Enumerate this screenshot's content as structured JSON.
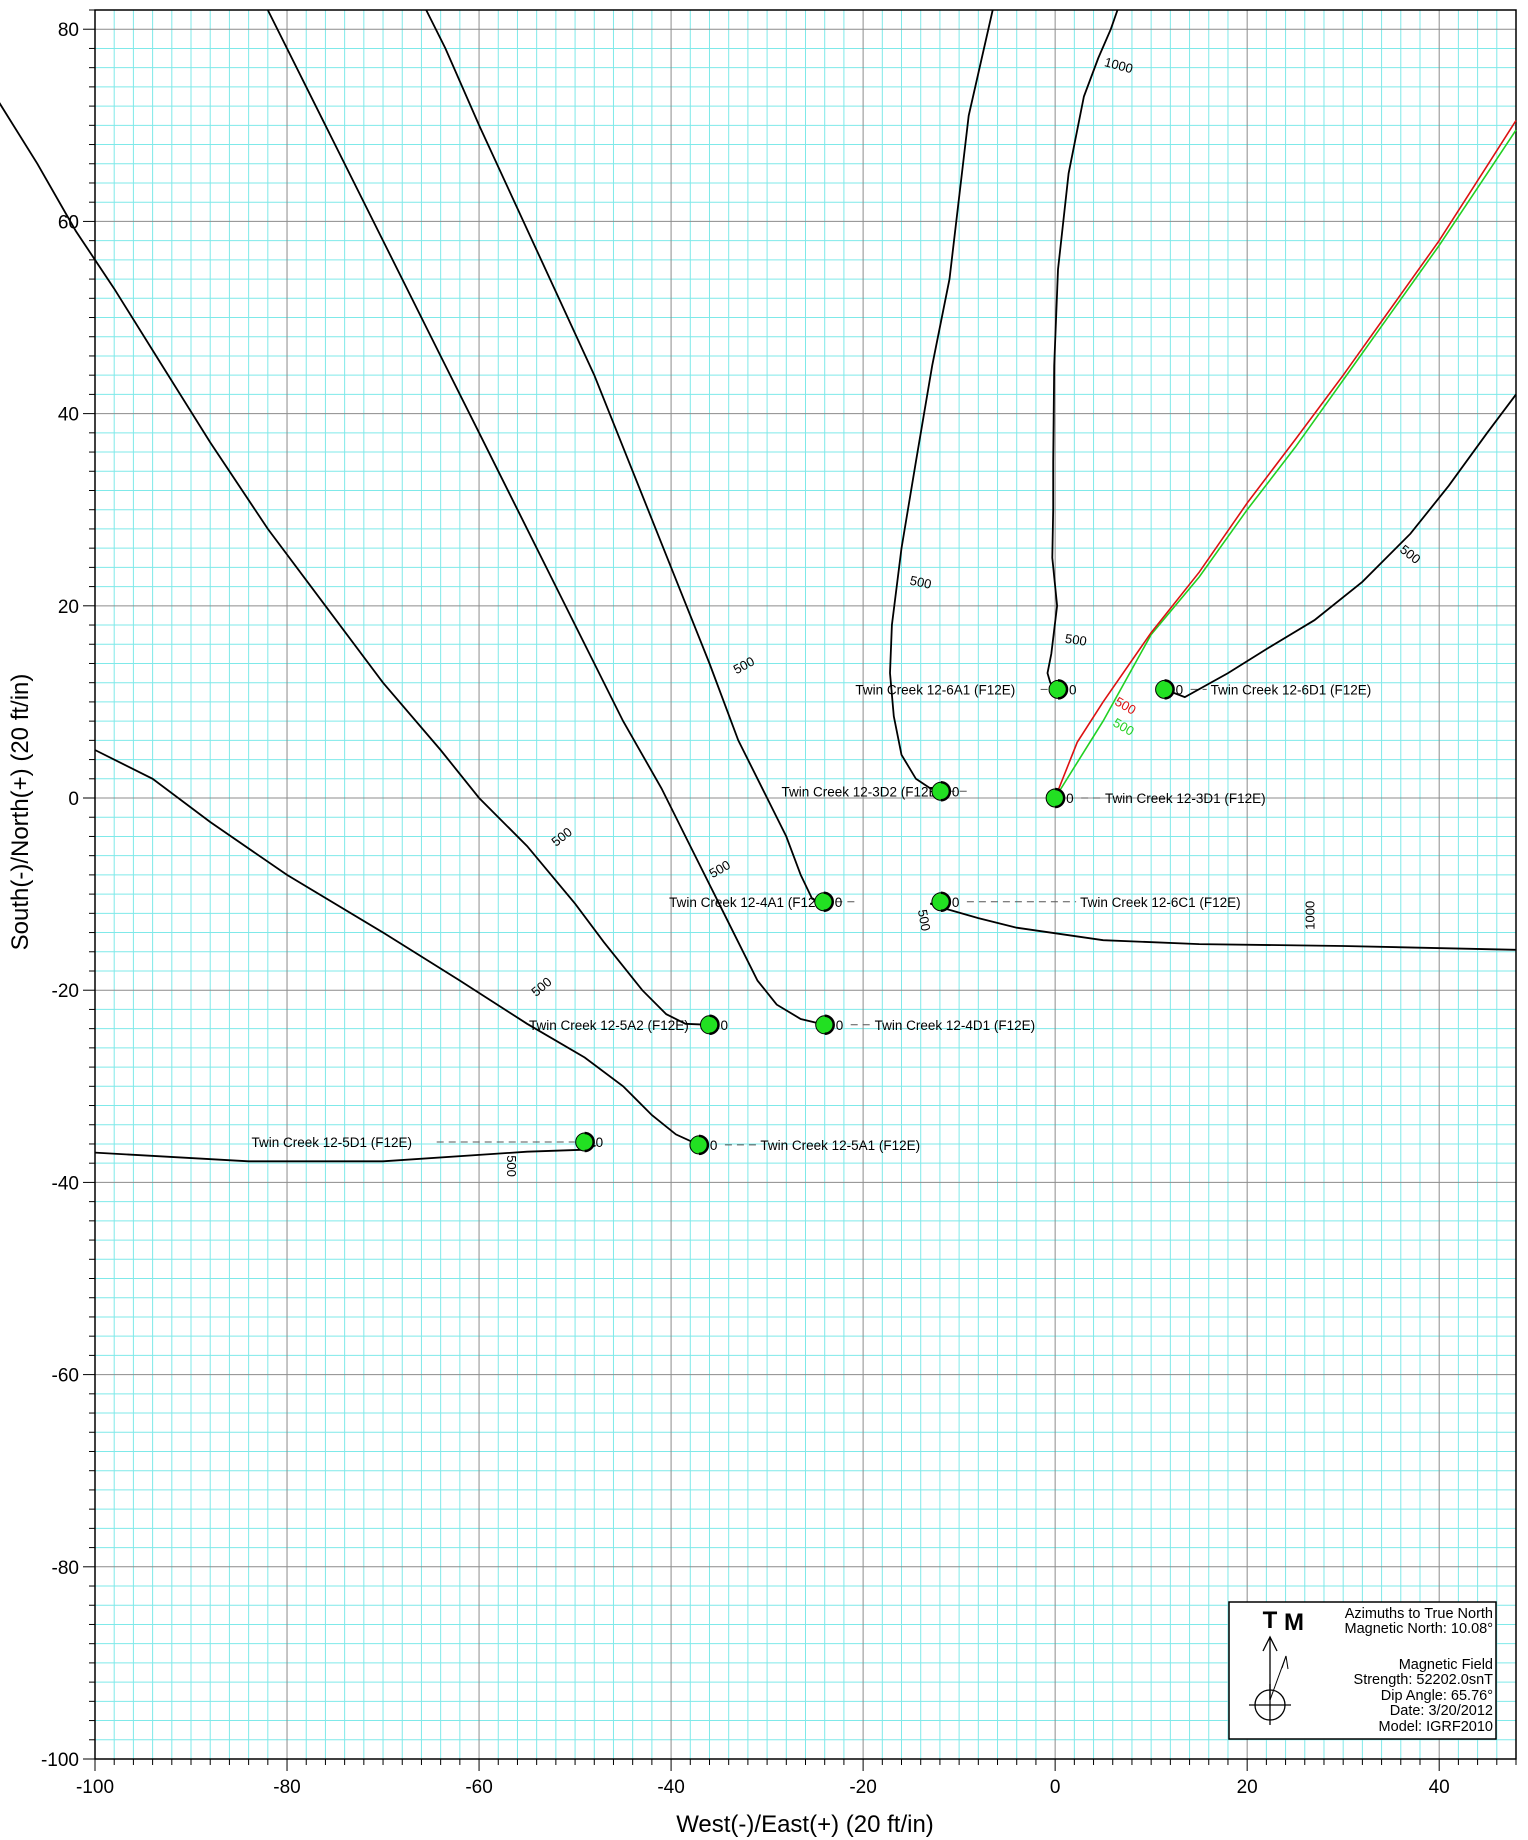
{
  "chart_data": {
    "type": "plan-view",
    "xlabel": "West(-)/East(+) (20 ft/in)",
    "ylabel": "South(-)/North(+) (20 ft/in)",
    "xlim": [
      -100,
      48
    ],
    "ylim": [
      -100,
      82
    ],
    "x_ticks": [
      -100,
      -80,
      -60,
      -40,
      -20,
      0,
      20,
      40
    ],
    "y_ticks": [
      80,
      60,
      40,
      20,
      0,
      -20,
      -40,
      -60,
      -80,
      -100
    ],
    "x_tick_labels": [
      "-100",
      "-80",
      "-60",
      "-40",
      "-20",
      "0",
      "20",
      "40"
    ],
    "y_tick_labels": [
      "80",
      "60",
      "40",
      "20",
      "0",
      "-20",
      "-40",
      "-60",
      "-80",
      "-100"
    ],
    "grid": {
      "major": 20,
      "minor": 2
    },
    "colors": {
      "minor_grid": "#7fe9e9",
      "major_grid": "#8c8c8c",
      "well_fill": "#22e022",
      "trajectory": "#000000",
      "subject_plan": "#22d022",
      "subject_actual": "#dd1111"
    },
    "wells": [
      {
        "name": "Twin Creek 12-6A1 (F12E)",
        "x": 0.3,
        "y": 11.3,
        "label_side": "left",
        "label_x": -20.8,
        "zero_label": "0"
      },
      {
        "name": "Twin Creek 12-6D1 (F12E)",
        "x": 11.4,
        "y": 11.3,
        "label_side": "right",
        "label_x": 16.2,
        "zero_label": "0"
      },
      {
        "name": "Twin Creek 12-3D2 (F12E)",
        "x": -11.9,
        "y": 0.7,
        "label_side": "left",
        "label_x": -28.5,
        "zero_label": "0"
      },
      {
        "name": "Twin Creek 12-3D1 (F12E)",
        "x": 0.0,
        "y": 0.0,
        "label_side": "right",
        "label_x": 5.2,
        "zero_label": "0"
      },
      {
        "name": "Twin Creek 12-4A1 (F12E)",
        "x": -24.1,
        "y": -10.8,
        "label_side": "left",
        "label_x": -40.2,
        "zero_label": "0"
      },
      {
        "name": "Twin Creek 12-6C1 (F12E)",
        "x": -11.9,
        "y": -10.8,
        "label_side": "right",
        "label_x": 2.6,
        "zero_label": "0"
      },
      {
        "name": "Twin Creek 12-5A2 (F12E)",
        "x": -36.0,
        "y": -23.6,
        "label_side": "left",
        "label_x": -54.8,
        "zero_label": "0"
      },
      {
        "name": "Twin Creek 12-4D1 (F12E)",
        "x": -24.0,
        "y": -23.6,
        "label_side": "right",
        "label_x": -18.8,
        "zero_label": "0"
      },
      {
        "name": "Twin Creek 12-5D1 (F12E)",
        "x": -49.0,
        "y": -35.8,
        "label_side": "left",
        "label_x": -83.7,
        "zero_label": "0"
      },
      {
        "name": "Twin Creek 12-5A1 (F12E)",
        "x": -37.1,
        "y": -36.1,
        "label_side": "right",
        "label_x": -30.7,
        "zero_label": "0"
      }
    ],
    "trajectories": [
      {
        "well": "Twin Creek 12-6A1 (F12E)",
        "color": "black",
        "points": [
          [
            0.3,
            11.3
          ],
          [
            -0.5,
            12
          ],
          [
            -0.8,
            13
          ],
          [
            -0.4,
            15
          ],
          [
            0.2,
            20
          ],
          [
            -0.3,
            25
          ],
          [
            -0.2,
            30
          ],
          [
            -0.2,
            35
          ],
          [
            -0.1,
            45
          ],
          [
            0.3,
            55
          ],
          [
            1.4,
            65
          ],
          [
            3.0,
            73
          ],
          [
            4.5,
            77
          ],
          [
            5.8,
            80
          ],
          [
            6.5,
            82
          ]
        ]
      },
      {
        "well": "Twin Creek 12-6D1 (F12E)",
        "color": "black",
        "points": [
          [
            11.4,
            11.3
          ],
          [
            13.5,
            10.5
          ],
          [
            18,
            13
          ],
          [
            22,
            15.5
          ],
          [
            27,
            18.5
          ],
          [
            32,
            22.5
          ],
          [
            37,
            27.5
          ],
          [
            41,
            32.5
          ],
          [
            45,
            38
          ],
          [
            48,
            42
          ]
        ]
      },
      {
        "well": "Twin Creek 12-3D2 (F12E)",
        "color": "black",
        "points": [
          [
            -11.9,
            0.7
          ],
          [
            -13,
            1.0
          ],
          [
            -14.5,
            2.0
          ],
          [
            -16,
            4.5
          ],
          [
            -16.8,
            8.5
          ],
          [
            -17.2,
            13
          ],
          [
            -17.0,
            18
          ],
          [
            -16.0,
            26
          ],
          [
            -14.5,
            35
          ],
          [
            -12.8,
            45
          ],
          [
            -11.0,
            54
          ],
          [
            -9.0,
            71
          ],
          [
            -6.5,
            82
          ]
        ]
      },
      {
        "well": "Twin Creek 12-4A1 (F12E)",
        "color": "black",
        "points": [
          [
            -24.1,
            -10.8
          ],
          [
            -25.3,
            -10.5
          ],
          [
            -26.5,
            -8
          ],
          [
            -28,
            -4
          ],
          [
            -30,
            0
          ],
          [
            -33,
            6
          ],
          [
            -36,
            14
          ],
          [
            -40,
            24
          ],
          [
            -44,
            34
          ],
          [
            -48,
            44
          ],
          [
            -54,
            57
          ],
          [
            -60,
            70
          ],
          [
            -63.5,
            78
          ],
          [
            -65.5,
            82
          ]
        ]
      },
      {
        "well": "Twin Creek 12-4D1 (F12E)",
        "color": "black",
        "points": [
          [
            -24.0,
            -23.6
          ],
          [
            -26.5,
            -23
          ],
          [
            -29,
            -21.5
          ],
          [
            -31,
            -19
          ],
          [
            -33,
            -15
          ],
          [
            -35,
            -11
          ],
          [
            -38,
            -5
          ],
          [
            -41,
            1
          ],
          [
            -45,
            8
          ],
          [
            -48.5,
            15
          ],
          [
            -52,
            22
          ],
          [
            -56,
            30
          ],
          [
            -60,
            38
          ],
          [
            -64,
            46
          ],
          [
            -70,
            58
          ],
          [
            -76,
            70
          ],
          [
            -82,
            82
          ]
        ]
      },
      {
        "well": "Twin Creek 12-5A2 (F12E)",
        "color": "black",
        "points": [
          [
            -36.0,
            -23.6
          ],
          [
            -38.5,
            -23.5
          ],
          [
            -40.5,
            -22.5
          ],
          [
            -43,
            -20
          ],
          [
            -47,
            -15
          ],
          [
            -50,
            -11
          ],
          [
            -55,
            -5
          ],
          [
            -60,
            0
          ],
          [
            -64,
            5
          ],
          [
            -70,
            12
          ],
          [
            -76,
            20
          ],
          [
            -82,
            28
          ],
          [
            -88,
            37
          ],
          [
            -93,
            45
          ],
          [
            -98,
            53
          ],
          [
            -102,
            59
          ],
          [
            -106,
            66
          ],
          [
            -111,
            74
          ],
          [
            -115,
            82
          ]
        ]
      },
      {
        "well": "Twin Creek 12-5A1 (F12E)",
        "color": "black",
        "points": [
          [
            -37.1,
            -36.1
          ],
          [
            -39.5,
            -35
          ],
          [
            -42,
            -33
          ],
          [
            -45,
            -30
          ],
          [
            -49,
            -27
          ],
          [
            -55,
            -23.5
          ],
          [
            -62,
            -19
          ],
          [
            -70,
            -14
          ],
          [
            -80,
            -8
          ],
          [
            -88,
            -2.5
          ],
          [
            -94,
            2
          ],
          [
            -100,
            5
          ]
        ]
      },
      {
        "well": "Twin Creek 12-6C1 (F12E)",
        "color": "black",
        "points": [
          [
            -11.9,
            -10.8
          ],
          [
            -13,
            -11
          ],
          [
            -11.5,
            -11.5
          ],
          [
            -8,
            -12.5
          ],
          [
            -4,
            -13.5
          ],
          [
            5,
            -14.8
          ],
          [
            15,
            -15.2
          ],
          [
            30,
            -15.4
          ],
          [
            48,
            -15.8
          ]
        ]
      },
      {
        "well": "Twin Creek 12-5D1 (F12E)",
        "color": "black",
        "points": [
          [
            -49,
            -35.8
          ],
          [
            -48,
            -36.2
          ],
          [
            -49,
            -36.6
          ],
          [
            -55,
            -36.8
          ],
          [
            -70,
            -37.8
          ],
          [
            -84,
            -37.8
          ],
          [
            -100,
            -36.9
          ]
        ]
      },
      {
        "well": "Twin Creek 12-3D1 (F12E) plan",
        "color": "green",
        "points": [
          [
            0,
            0
          ],
          [
            5,
            8
          ],
          [
            10,
            17
          ],
          [
            15,
            23
          ],
          [
            20,
            30
          ],
          [
            25,
            36.5
          ],
          [
            30,
            43.5
          ],
          [
            35,
            50.5
          ],
          [
            40,
            57.5
          ],
          [
            45,
            65
          ],
          [
            48,
            69.5
          ]
        ]
      },
      {
        "well": "Twin Creek 12-3D1 (F12E) actual",
        "color": "red",
        "points": [
          [
            0,
            0
          ],
          [
            2.3,
            5.8
          ],
          [
            5,
            10
          ],
          [
            10,
            17.2
          ],
          [
            15,
            23.5
          ],
          [
            20,
            30.7
          ],
          [
            25,
            37.3
          ],
          [
            30,
            44
          ],
          [
            35,
            51
          ],
          [
            40,
            58
          ],
          [
            45,
            65.8
          ],
          [
            48,
            70.5
          ]
        ]
      }
    ],
    "md_labels": [
      {
        "text": "1000",
        "x": 6.5,
        "y": 75.8,
        "rotate": 15,
        "color": "black"
      },
      {
        "text": "500",
        "x": -14.1,
        "y": 22,
        "rotate": 12,
        "color": "black"
      },
      {
        "text": "500",
        "x": 2.1,
        "y": 16,
        "rotate": 8,
        "color": "black"
      },
      {
        "text": "500",
        "x": 36.7,
        "y": 25,
        "rotate": 38,
        "color": "black"
      },
      {
        "text": "500",
        "x": 7.1,
        "y": 9.2,
        "rotate": 30,
        "color": "red"
      },
      {
        "text": "500",
        "x": 6.9,
        "y": 7.0,
        "rotate": 30,
        "color": "green"
      },
      {
        "text": "500",
        "x": -32.2,
        "y": 13.4,
        "rotate": -28,
        "color": "black"
      },
      {
        "text": "500",
        "x": -51.1,
        "y": -4.4,
        "rotate": -38,
        "color": "black"
      },
      {
        "text": "500",
        "x": -34.7,
        "y": -7.8,
        "rotate": -30,
        "color": "black"
      },
      {
        "text": "500",
        "x": -53.2,
        "y": -20.0,
        "rotate": -40,
        "color": "black"
      },
      {
        "text": "500",
        "x": -14.1,
        "y": -12.8,
        "rotate": 80,
        "color": "black"
      },
      {
        "text": "1000",
        "x": 27,
        "y": -12.2,
        "rotate": -90,
        "color": "black"
      },
      {
        "text": "500",
        "x": -57.1,
        "y": -38.3,
        "rotate": 90,
        "color": "black"
      }
    ]
  },
  "legend": {
    "true_letter": "T",
    "magnetic_letter": "M",
    "lines": [
      "Azimuths to True North",
      "Magnetic North: 10.08°",
      "",
      "Magnetic Field",
      "Strength: 52202.0snT",
      "Dip Angle: 65.76°",
      "Date: 3/20/2012",
      "Model: IGRF2010"
    ]
  }
}
